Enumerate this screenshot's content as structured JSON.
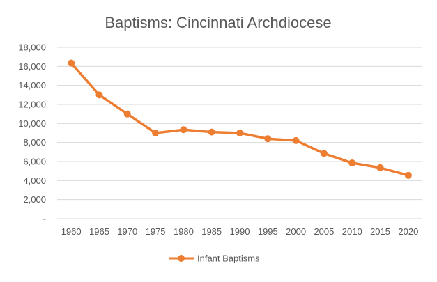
{
  "chart_data": {
    "type": "line",
    "title": "Baptisms: Cincinnati Archdiocese",
    "xlabel": "",
    "ylabel": "",
    "categories": [
      "1960",
      "1965",
      "1970",
      "1975",
      "1980",
      "1985",
      "1990",
      "1995",
      "2000",
      "2005",
      "2010",
      "2015",
      "2020"
    ],
    "series": [
      {
        "name": "Infant Baptisms",
        "color": "#ED7D31",
        "values": [
          16350,
          13000,
          11000,
          9000,
          9350,
          9100,
          9000,
          8400,
          8200,
          6850,
          5850,
          5350,
          4550
        ]
      }
    ],
    "ylim": [
      0,
      18000
    ],
    "y_ticks": [
      "-",
      "2,000",
      "4,000",
      "6,000",
      "8,000",
      "10,000",
      "12,000",
      "14,000",
      "16,000",
      "18,000"
    ],
    "grid": "horizontal",
    "legend_position": "bottom",
    "colors": {
      "gridline": "#D9D9D9",
      "text": "#595959",
      "title": "#595959"
    }
  }
}
